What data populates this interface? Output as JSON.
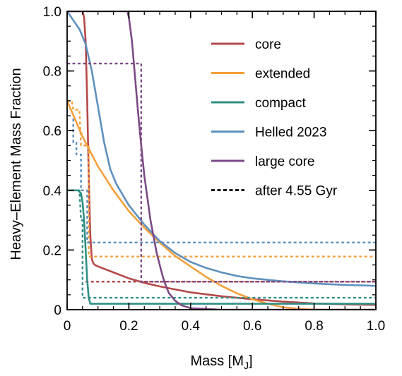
{
  "chart_data": {
    "type": "line",
    "xlabel": "Mass [M",
    "xlabel_sub": "J",
    "xlabel_close": "]",
    "ylabel": "Heavy–Element Mass Fraction",
    "xlim": [
      0,
      1.0
    ],
    "ylim": [
      0,
      1.0
    ],
    "x_ticks": [
      0,
      0.2,
      0.4,
      0.6,
      0.8,
      1.0
    ],
    "x_tick_labels": [
      "0",
      "0.2",
      "0.4",
      "0.6",
      "0.8",
      "1.0"
    ],
    "y_ticks": [
      0,
      0.2,
      0.4,
      0.6,
      0.8,
      1.0
    ],
    "y_tick_labels": [
      "0",
      "0.2",
      "0.4",
      "0.6",
      "0.8",
      "1.0"
    ],
    "grid": false,
    "legend_position": "upper right",
    "series": [
      {
        "name": "core",
        "color": "#b5484a",
        "style": "solid",
        "x": [
          0,
          0.05,
          0.055,
          0.06,
          0.065,
          0.07,
          0.075,
          0.08,
          0.085,
          0.09,
          0.1,
          0.15,
          0.2,
          0.25,
          0.3,
          0.35,
          0.4,
          0.5,
          0.6,
          0.7,
          0.8,
          0.9,
          1.0
        ],
        "y": [
          1.0,
          1.0,
          0.98,
          0.9,
          0.7,
          0.45,
          0.25,
          0.17,
          0.155,
          0.15,
          0.145,
          0.125,
          0.105,
          0.09,
          0.078,
          0.068,
          0.058,
          0.045,
          0.035,
          0.027,
          0.021,
          0.018,
          0.016
        ]
      },
      {
        "name": "core",
        "color": "#b5484a",
        "style": "dashed",
        "x": [
          0.06,
          1.0
        ],
        "y": [
          0.094,
          0.094
        ]
      },
      {
        "name": "extended",
        "color": "#f4a03c",
        "style": "solid",
        "x": [
          0,
          0.05,
          0.1,
          0.15,
          0.2,
          0.25,
          0.3,
          0.35,
          0.4,
          0.45,
          0.5,
          0.55,
          0.6,
          0.65,
          0.7,
          0.75,
          0.8,
          0.85,
          0.9,
          1.0
        ],
        "y": [
          0.7,
          0.58,
          0.48,
          0.4,
          0.33,
          0.275,
          0.225,
          0.18,
          0.145,
          0.11,
          0.08,
          0.055,
          0.035,
          0.02,
          0.008,
          0.003,
          0,
          0,
          0,
          0
        ]
      },
      {
        "name": "extended",
        "color": "#f4a03c",
        "style": "dashed",
        "x": [
          0,
          0.015,
          0.02,
          0.04,
          0.045,
          0.05,
          0.07,
          0.07,
          1.0
        ],
        "y": [
          0.7,
          0.7,
          0.67,
          0.67,
          0.55,
          0.55,
          0.55,
          0.178,
          0.178
        ]
      },
      {
        "name": "compact",
        "color": "#2f8f84",
        "style": "solid",
        "x": [
          0,
          0.035,
          0.045,
          0.05,
          0.055,
          0.06,
          0.065,
          0.07,
          0.075,
          0.08,
          1.0
        ],
        "y": [
          0.4,
          0.4,
          0.39,
          0.36,
          0.3,
          0.2,
          0.1,
          0.04,
          0.02,
          0.02,
          0.02
        ]
      },
      {
        "name": "compact",
        "color": "#2f8f84",
        "style": "dashed",
        "x": [
          0,
          0.04,
          0.045,
          0.05,
          0.05,
          1.0
        ],
        "y": [
          0.4,
          0.4,
          0.3,
          0.3,
          0.04,
          0.04
        ]
      },
      {
        "name": "Helled 2023",
        "color": "#5f90bd",
        "style": "solid",
        "x": [
          0,
          0.02,
          0.04,
          0.06,
          0.08,
          0.1,
          0.12,
          0.14,
          0.16,
          0.2,
          0.25,
          0.3,
          0.35,
          0.4,
          0.45,
          0.5,
          0.55,
          0.6,
          0.7,
          0.8,
          0.9,
          1.0
        ],
        "y": [
          1.0,
          0.97,
          0.94,
          0.89,
          0.8,
          0.68,
          0.56,
          0.47,
          0.42,
          0.35,
          0.285,
          0.23,
          0.19,
          0.16,
          0.14,
          0.125,
          0.113,
          0.105,
          0.095,
          0.088,
          0.083,
          0.08
        ]
      },
      {
        "name": "Helled 2023",
        "color": "#5f90bd",
        "style": "dashed",
        "x": [
          0.02,
          0.02,
          0.03,
          0.03,
          0.045,
          0.045,
          0.065,
          0.065,
          1.0
        ],
        "y": [
          0.64,
          0.56,
          0.56,
          0.52,
          0.52,
          0.4,
          0.4,
          0.225,
          0.225
        ]
      },
      {
        "name": "large core",
        "color": "#7c4a86",
        "style": "solid",
        "x": [
          0,
          0.195,
          0.2,
          0.21,
          0.22,
          0.23,
          0.24,
          0.25,
          0.27,
          0.29,
          0.3,
          0.31,
          0.32,
          0.33,
          0.35,
          0.37,
          0.4,
          0.5,
          0.6,
          0.8,
          1.0
        ],
        "y": [
          1.0,
          1.0,
          0.98,
          0.9,
          0.78,
          0.66,
          0.55,
          0.45,
          0.3,
          0.19,
          0.15,
          0.11,
          0.08,
          0.055,
          0.03,
          0.015,
          0.005,
          0,
          0,
          0,
          0
        ]
      },
      {
        "name": "large core",
        "color": "#7c4a86",
        "style": "dashed",
        "x": [
          0.0,
          0.24,
          0.24,
          1.0
        ],
        "y": [
          0.825,
          0.825,
          0.094,
          0.094
        ]
      }
    ],
    "legend": [
      {
        "label": "core",
        "color": "#b5484a",
        "style": "solid"
      },
      {
        "label": "extended",
        "color": "#f4a03c",
        "style": "solid"
      },
      {
        "label": "compact",
        "color": "#2f8f84",
        "style": "solid"
      },
      {
        "label": "Helled 2023",
        "color": "#5f90bd",
        "style": "solid"
      },
      {
        "label": "large core",
        "color": "#7c4a86",
        "style": "solid"
      },
      {
        "label": "after 4.55 Gyr",
        "color": "#000000",
        "style": "dashed"
      }
    ]
  }
}
